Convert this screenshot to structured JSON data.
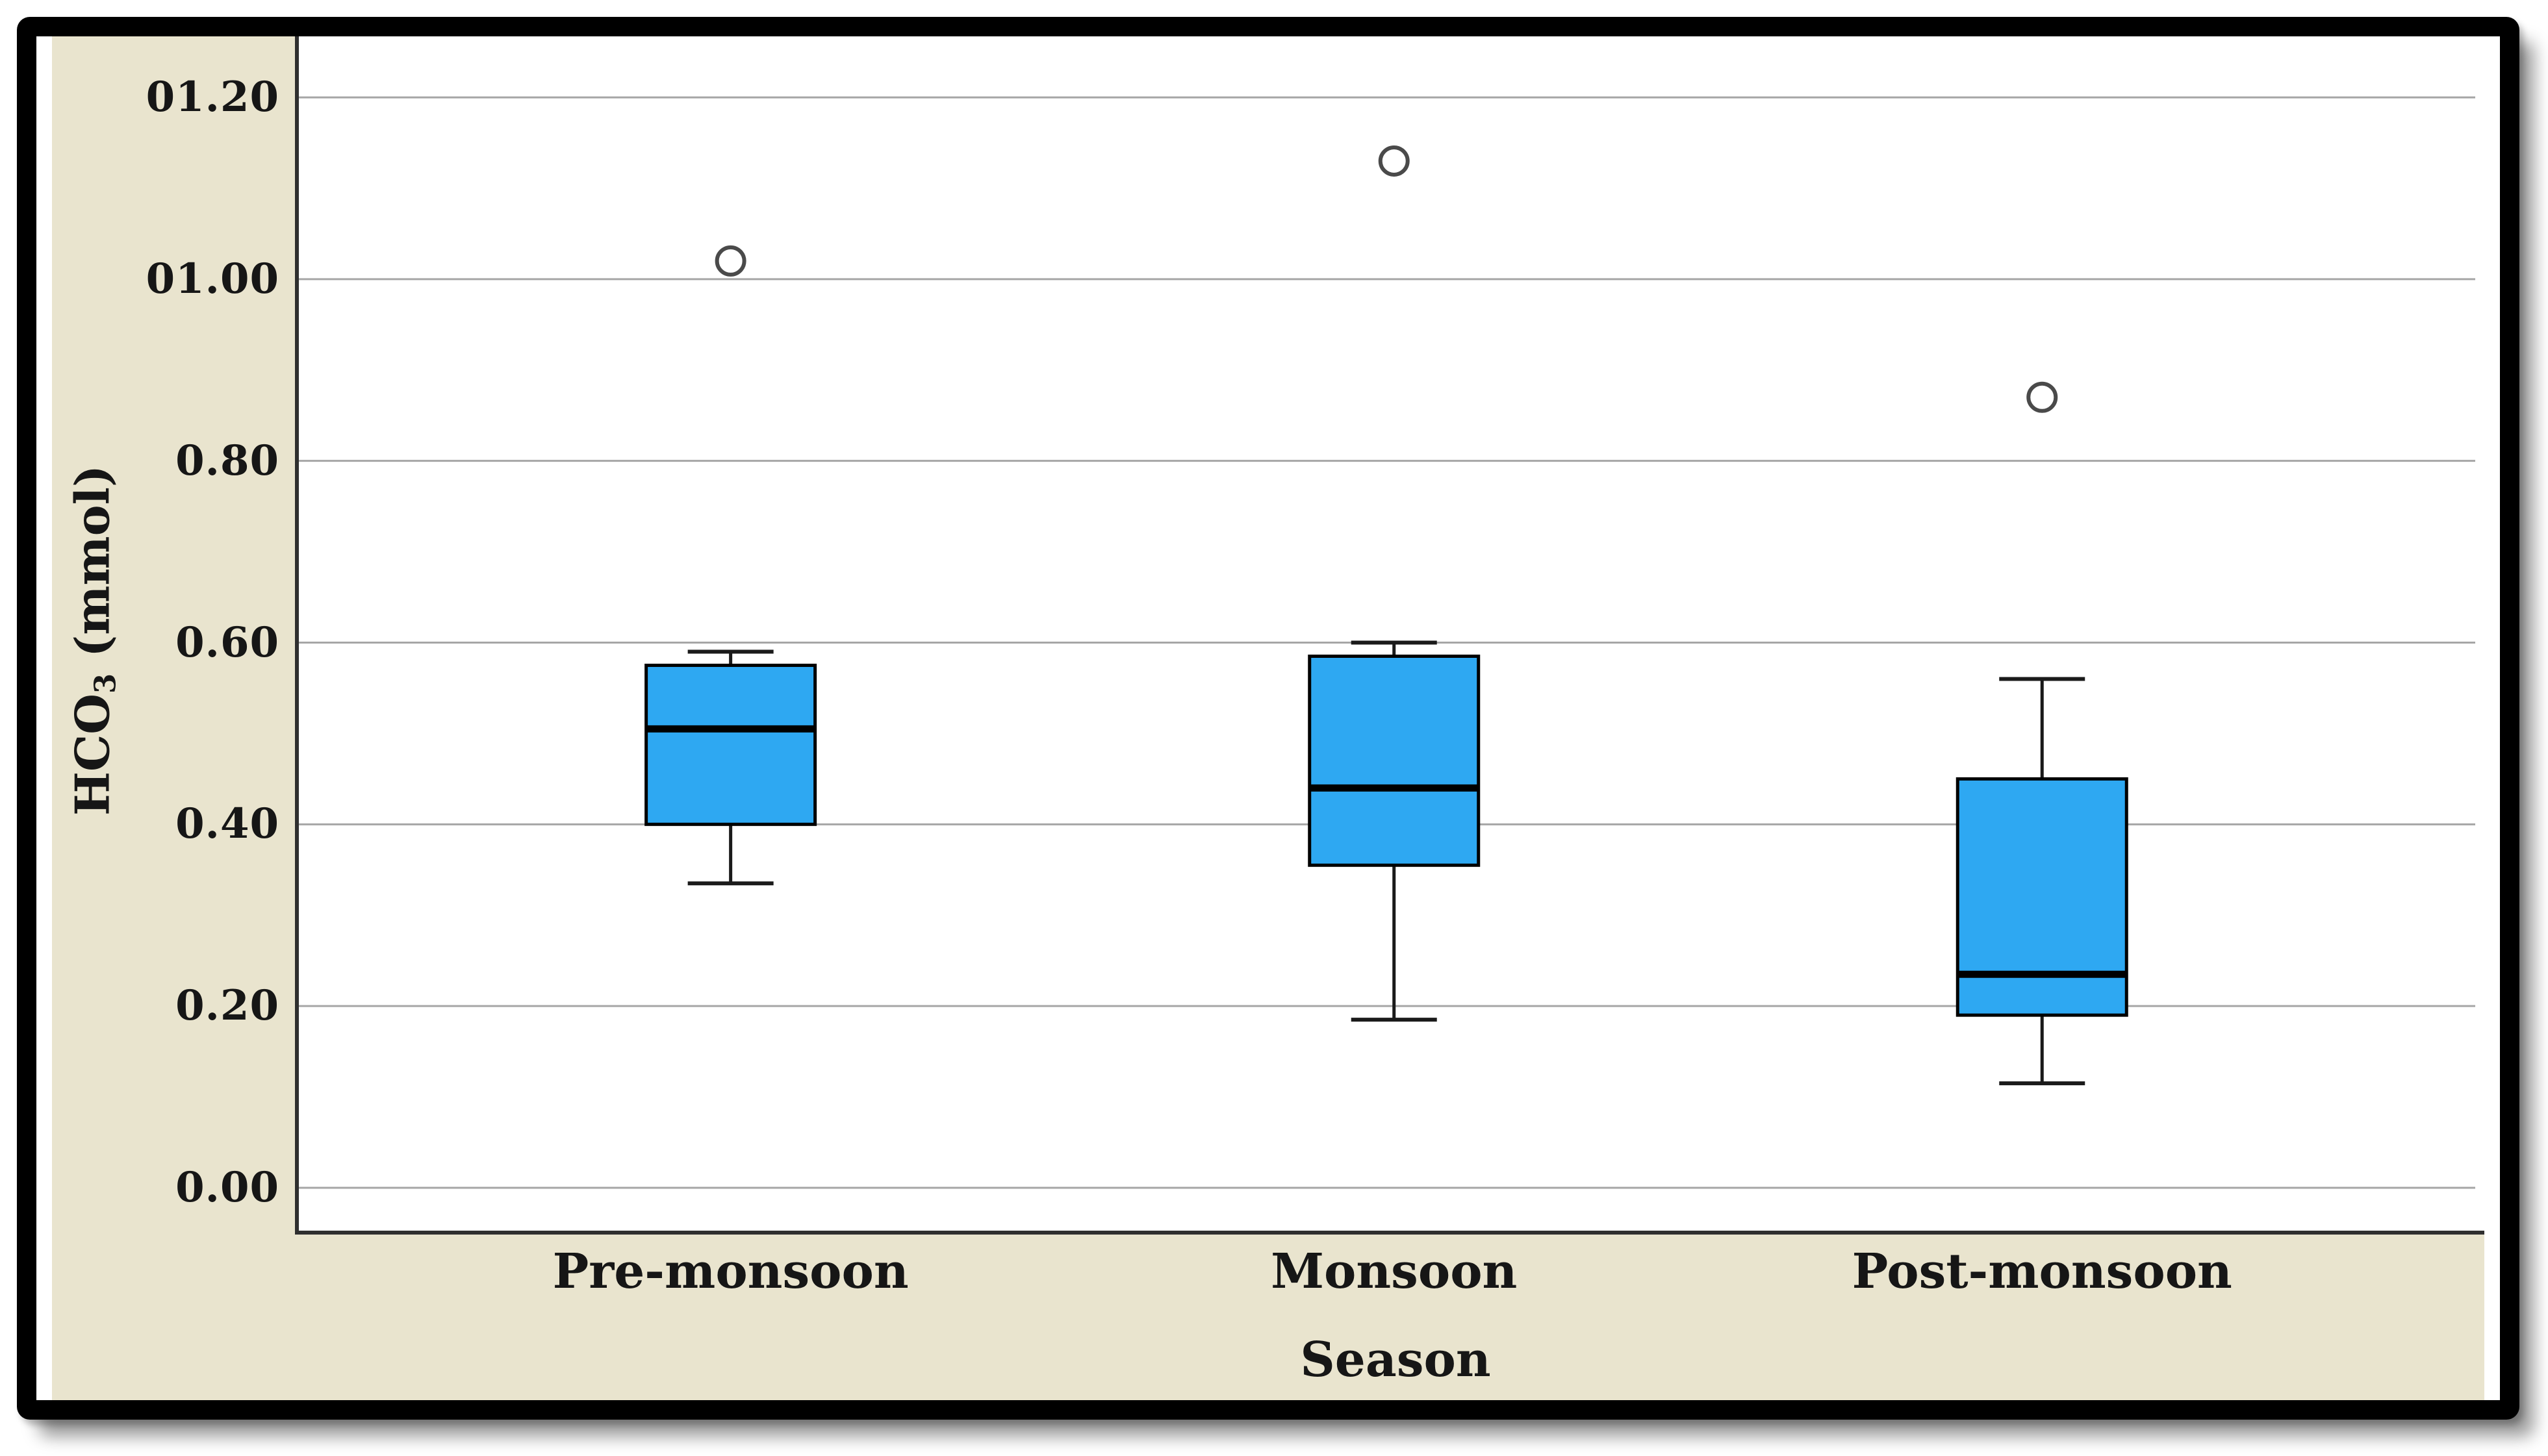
{
  "figure": {
    "y_axis": {
      "label_prefix": "HCO",
      "label_subscript": "3",
      "label_suffix": " (mmol)"
    },
    "x_axis": {
      "title": "Season"
    }
  },
  "chart_data": {
    "type": "boxplot",
    "title": "",
    "xlabel": "Season",
    "ylabel": "HCO3 (mmol)",
    "ylim": [
      0.0,
      1.2
    ],
    "grid": true,
    "legend": false,
    "ytick_values": [
      1.2,
      1.0,
      0.8,
      0.6,
      0.4,
      0.2,
      0.0
    ],
    "ytick_labels": [
      "01.20",
      "01.00",
      "0.80",
      "0.60",
      "0.40",
      "0.20",
      "0.00"
    ],
    "categories": [
      "Pre-monsoon",
      "Monsoon",
      "Post-monsoon"
    ],
    "series": [
      {
        "category": "Pre-monsoon",
        "whisker_low": 0.335,
        "q1": 0.4,
        "median": 0.505,
        "q3": 0.575,
        "whisker_high": 0.59,
        "outliers": [
          1.02
        ]
      },
      {
        "category": "Monsoon",
        "whisker_low": 0.185,
        "q1": 0.355,
        "median": 0.44,
        "q3": 0.585,
        "whisker_high": 0.6,
        "outliers": [
          1.13
        ]
      },
      {
        "category": "Post-monsoon",
        "whisker_low": 0.115,
        "q1": 0.19,
        "median": 0.235,
        "q3": 0.45,
        "whisker_high": 0.56,
        "outliers": [
          0.87
        ]
      }
    ],
    "colors": {
      "box_fill": "#2EA8F2",
      "box_border": "#000000",
      "median_line": "#000000",
      "whisker": "#1a1a1a",
      "outlier_stroke": "#4a4a4a",
      "gridline": "#a6a6a6",
      "axis": "#2f2f2f",
      "plot_background": "#ffffff",
      "canvas_background": "#E9E4CE",
      "frame_border": "#000000"
    }
  }
}
